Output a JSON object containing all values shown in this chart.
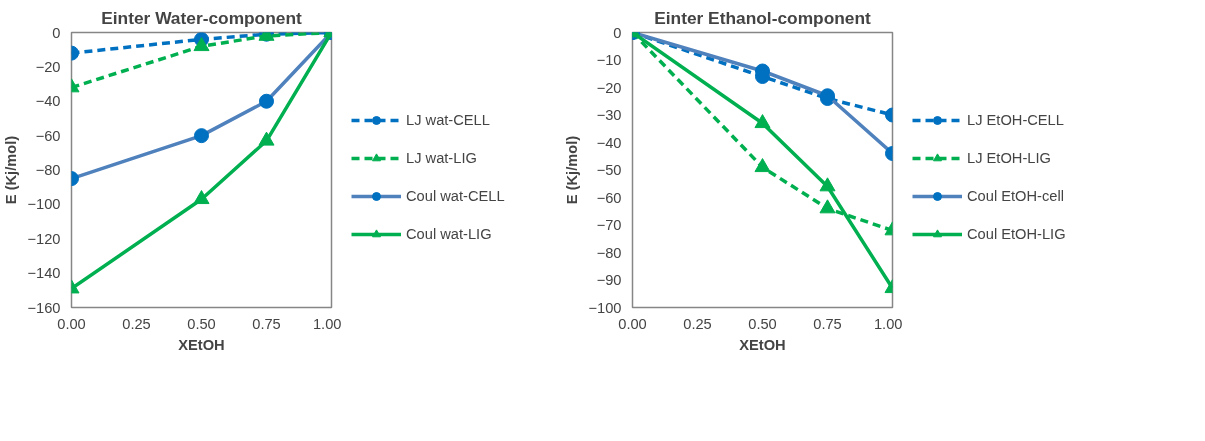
{
  "chart_data": [
    {
      "type": "line",
      "title": "Einter Water-component",
      "xlabel": "XEtOH",
      "ylabel": "E (Kj/mol)",
      "x": [
        0,
        0.5,
        0.75,
        1
      ],
      "xlim": [
        0,
        1
      ],
      "xticks": [
        {
          "value": 0,
          "label": "0.00"
        },
        {
          "value": 0.25,
          "label": "0.25"
        },
        {
          "value": 0.5,
          "label": "0.50"
        },
        {
          "value": 0.75,
          "label": "0.75"
        },
        {
          "value": 1,
          "label": "1.00"
        }
      ],
      "ylim": [
        -160,
        0
      ],
      "yticks": [
        -160,
        -140,
        -120,
        -100,
        -80,
        -60,
        -40,
        -20,
        0
      ],
      "grid": false,
      "legend": "right",
      "series": [
        {
          "name": "LJ wat-CELL",
          "color": "#0070c0",
          "marker": "circle",
          "line_style": "dashed",
          "values": [
            -12,
            -4,
            -1,
            0
          ]
        },
        {
          "name": "LJ wat-LIG",
          "color": "#00b050",
          "marker": "triangle",
          "line_style": "dashed",
          "values": [
            -32,
            -8,
            -2,
            0
          ]
        },
        {
          "name": "Coul wat-CELL",
          "color": "#4f81bd",
          "marker": "circle",
          "line_style": "solid",
          "values": [
            -85,
            -60,
            -40,
            0
          ]
        },
        {
          "name": "Coul wat-LIG",
          "color": "#00b050",
          "marker": "triangle",
          "line_style": "solid",
          "values": [
            -149,
            -97,
            -63,
            0
          ]
        }
      ]
    },
    {
      "type": "line",
      "title": "Einter Ethanol-component",
      "xlabel": "XEtOH",
      "ylabel": "E (Kj/mol)",
      "x": [
        0,
        0.5,
        0.75,
        1
      ],
      "xlim": [
        0,
        1
      ],
      "xticks": [
        {
          "value": 0,
          "label": "0.00"
        },
        {
          "value": 0.25,
          "label": "0.25"
        },
        {
          "value": 0.5,
          "label": "0.50"
        },
        {
          "value": 0.75,
          "label": "0.75"
        },
        {
          "value": 1,
          "label": "1.00"
        }
      ],
      "ylim": [
        -100,
        0
      ],
      "yticks": [
        -100,
        -90,
        -80,
        -70,
        -60,
        -50,
        -40,
        -30,
        -20,
        -10,
        0
      ],
      "grid": false,
      "legend": "right",
      "series": [
        {
          "name": "LJ EtOH-CELL",
          "color": "#0070c0",
          "marker": "circle",
          "line_style": "dashed",
          "values": [
            0,
            -16,
            -24,
            -30
          ]
        },
        {
          "name": "LJ EtOH-LIG",
          "color": "#00b050",
          "marker": "triangle",
          "line_style": "dashed",
          "values": [
            0,
            -49,
            -64,
            -72
          ]
        },
        {
          "name": "Coul EtOH-cell",
          "color": "#4f81bd",
          "marker": "circle",
          "line_style": "solid",
          "values": [
            0,
            -14,
            -23,
            -44
          ]
        },
        {
          "name": "Coul EtOH-LIG",
          "color": "#00b050",
          "marker": "triangle",
          "line_style": "solid",
          "values": [
            0,
            -33,
            -56,
            -93
          ]
        }
      ]
    }
  ]
}
